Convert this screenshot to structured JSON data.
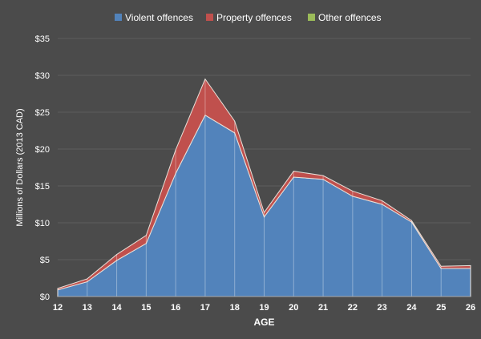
{
  "chart_data": {
    "type": "area",
    "stacked": true,
    "title": "",
    "xlabel": "AGE",
    "ylabel": "Millions of Dollars  (2013 CAD)",
    "x": [
      12,
      13,
      14,
      15,
      16,
      17,
      18,
      19,
      20,
      21,
      22,
      23,
      24,
      25,
      26
    ],
    "ylim": [
      0,
      35
    ],
    "yticks": [
      "$0",
      "$5",
      "$10",
      "$15",
      "$20",
      "$25",
      "$30",
      "$35"
    ],
    "ytick_values": [
      0,
      5,
      10,
      15,
      20,
      25,
      30,
      35
    ],
    "grid": true,
    "legend_position": "top",
    "series": [
      {
        "name": "Violent offences",
        "color": "#5283bb",
        "values": [
          0.9,
          2.0,
          4.9,
          7.2,
          16.7,
          24.6,
          22.2,
          10.8,
          16.2,
          15.9,
          13.6,
          12.5,
          10.1,
          3.8,
          3.8
        ]
      },
      {
        "name": "Property offences",
        "color": "#c0504d",
        "values": [
          0.2,
          0.4,
          0.8,
          1.1,
          3.2,
          4.9,
          1.6,
          0.6,
          0.8,
          0.5,
          0.7,
          0.5,
          0.2,
          0.3,
          0.4
        ]
      },
      {
        "name": "Other offences",
        "color": "#9bbb59",
        "values": [
          0,
          0,
          0,
          0,
          0,
          0,
          0,
          0,
          0,
          0,
          0,
          0,
          0,
          0,
          0
        ]
      }
    ]
  }
}
